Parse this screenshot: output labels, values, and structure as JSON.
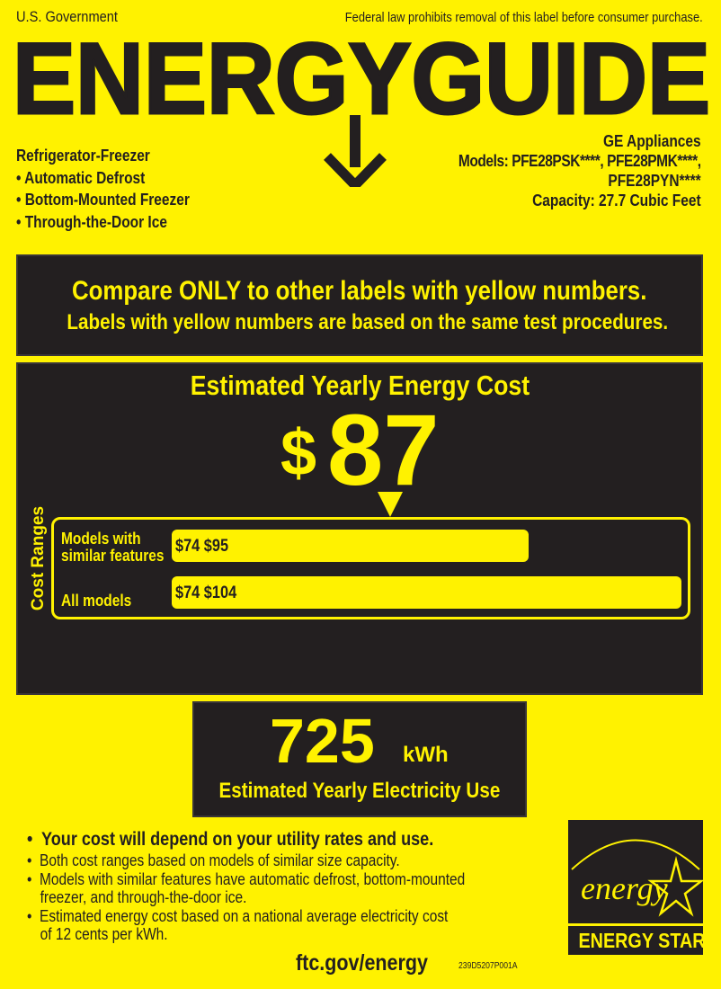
{
  "header": {
    "government": "U.S. Government",
    "notice": "Federal law prohibits removal of this label before consumer purchase.",
    "logo_text": "ENERGYGUIDE"
  },
  "product": {
    "type": "Refrigerator-Freezer",
    "features": [
      "• Automatic Defrost",
      "• Bottom-Mounted Freezer",
      "• Through-the-Door Ice"
    ],
    "brand": "GE Appliances",
    "models_line1": "Models: PFE28PSK****, PFE28PMK****,",
    "models_line2": "PFE28PYN****",
    "capacity": "Capacity: 27.7 Cubic Feet"
  },
  "compare": {
    "line1": "Compare ONLY to other labels with yellow numbers.",
    "line2": "Labels with yellow numbers are based on the same test procedures."
  },
  "cost": {
    "title": "Estimated Yearly Energy Cost",
    "currency": "$",
    "amount": "87",
    "ranges_label": "Cost Ranges",
    "ranges": [
      {
        "label_line1": "Models with",
        "label_line2": "similar features",
        "low": "$74",
        "high": "$95"
      },
      {
        "label_line1": "",
        "label_line2": "All models",
        "low": "$74",
        "high": "$104"
      }
    ]
  },
  "electricity": {
    "value": "725",
    "unit": "kWh",
    "label": "Estimated Yearly Electricity Use"
  },
  "notes": {
    "bold": "Your cost will depend on your utility rates and use.",
    "items": [
      "Both cost ranges based on models of similar size capacity.",
      "Models with similar features have automatic defrost, bottom-mounted",
      "freezer, and through-the-door ice.",
      "Estimated energy cost based on a national average electricity cost",
      "of 12 cents per kWh."
    ]
  },
  "footer": {
    "url": "ftc.gov/energy",
    "code": "239D5207P001A"
  },
  "energy_star": {
    "script": "energy",
    "label": "ENERGY STAR"
  },
  "colors": {
    "yellow": "#fff200",
    "dark": "#231f20"
  }
}
